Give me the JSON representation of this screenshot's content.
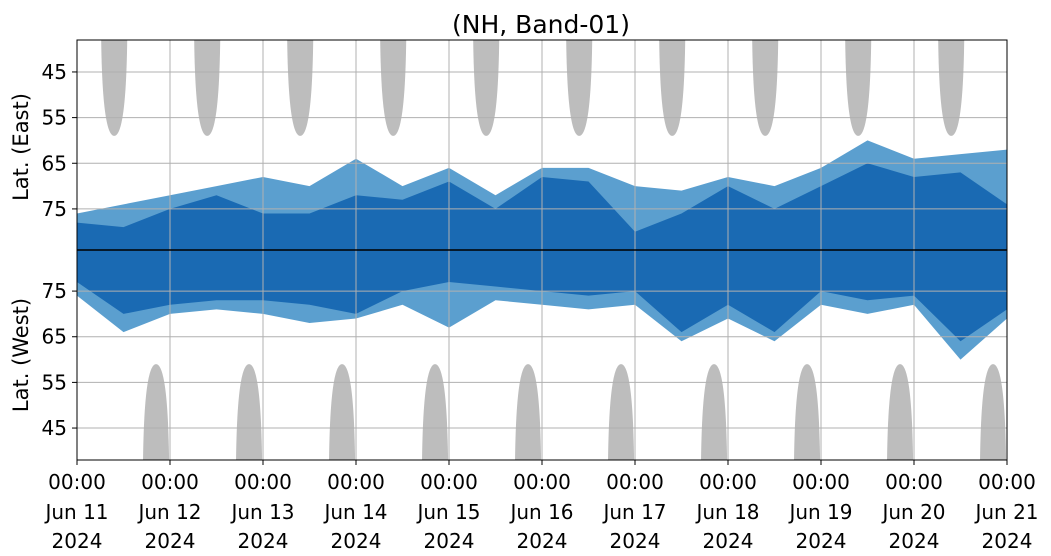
{
  "chart_data": {
    "type": "heatmap",
    "title": "(NH, Band-01)",
    "y_upper_label": "Lat. (East)",
    "y_lower_label": "Lat. (West)",
    "y_upper_ticks": [
      "45",
      "55",
      "65",
      "75"
    ],
    "y_lower_ticks": [
      "75",
      "65",
      "55",
      "45"
    ],
    "y_tick_latitudes_upper": [
      45,
      55,
      65,
      75
    ],
    "y_tick_latitudes_lower": [
      75,
      65,
      55,
      45
    ],
    "y_range_upper": [
      38,
      84
    ],
    "y_range_lower": [
      84,
      38
    ],
    "x_tick_labels": [
      {
        "time": "00:00",
        "date": "Jun 11",
        "year": "2024"
      },
      {
        "time": "00:00",
        "date": "Jun 12",
        "year": "2024"
      },
      {
        "time": "00:00",
        "date": "Jun 13",
        "year": "2024"
      },
      {
        "time": "00:00",
        "date": "Jun 14",
        "year": "2024"
      },
      {
        "time": "00:00",
        "date": "Jun 15",
        "year": "2024"
      },
      {
        "time": "00:00",
        "date": "Jun 16",
        "year": "2024"
      },
      {
        "time": "00:00",
        "date": "Jun 17",
        "year": "2024"
      },
      {
        "time": "00:00",
        "date": "Jun 18",
        "year": "2024"
      },
      {
        "time": "00:00",
        "date": "Jun 19",
        "year": "2024"
      },
      {
        "time": "00:00",
        "date": "Jun 20",
        "year": "2024"
      },
      {
        "time": "00:00",
        "date": "Jun 21",
        "year": "2024"
      }
    ],
    "x_range": [
      "2024-06-11 00:00",
      "2024-06-21 00:00"
    ],
    "grid": true,
    "colors": {
      "strong": "#1a6ab3",
      "weak": "#5b9fcf",
      "nodata": "#bdbdbd",
      "grid": "#b0b0b0",
      "divider": "#000000"
    },
    "nodata_caps_upper": [
      {
        "center_day": 0.4,
        "min_lat": 59
      },
      {
        "center_day": 1.4,
        "min_lat": 59
      },
      {
        "center_day": 2.4,
        "min_lat": 59
      },
      {
        "center_day": 3.4,
        "min_lat": 59
      },
      {
        "center_day": 4.4,
        "min_lat": 59
      },
      {
        "center_day": 5.4,
        "min_lat": 59
      },
      {
        "center_day": 6.4,
        "min_lat": 59
      },
      {
        "center_day": 7.4,
        "min_lat": 59
      },
      {
        "center_day": 8.4,
        "min_lat": 59
      },
      {
        "center_day": 9.4,
        "min_lat": 59
      }
    ],
    "nodata_caps_lower": [
      {
        "center_day": 0.85,
        "min_lat": 59
      },
      {
        "center_day": 1.85,
        "min_lat": 59
      },
      {
        "center_day": 2.85,
        "min_lat": 59
      },
      {
        "center_day": 3.85,
        "min_lat": 59
      },
      {
        "center_day": 4.85,
        "min_lat": 59
      },
      {
        "center_day": 5.85,
        "min_lat": 59
      },
      {
        "center_day": 6.85,
        "min_lat": 59
      },
      {
        "center_day": 7.85,
        "min_lat": 59
      },
      {
        "center_day": 8.85,
        "min_lat": 59
      },
      {
        "center_day": 9.85,
        "min_lat": 59
      }
    ],
    "activity_upper": [
      {
        "day": 0.0,
        "strong_to": 78,
        "weak_to": 76
      },
      {
        "day": 0.5,
        "strong_to": 79,
        "weak_to": 74
      },
      {
        "day": 1.0,
        "strong_to": 75,
        "weak_to": 72
      },
      {
        "day": 1.5,
        "strong_to": 72,
        "weak_to": 70
      },
      {
        "day": 2.0,
        "strong_to": 76,
        "weak_to": 68
      },
      {
        "day": 2.5,
        "strong_to": 76,
        "weak_to": 70
      },
      {
        "day": 3.0,
        "strong_to": 72,
        "weak_to": 64
      },
      {
        "day": 3.5,
        "strong_to": 73,
        "weak_to": 70
      },
      {
        "day": 4.0,
        "strong_to": 69,
        "weak_to": 66
      },
      {
        "day": 4.5,
        "strong_to": 75,
        "weak_to": 72
      },
      {
        "day": 5.0,
        "strong_to": 68,
        "weak_to": 66
      },
      {
        "day": 5.5,
        "strong_to": 69,
        "weak_to": 66
      },
      {
        "day": 6.0,
        "strong_to": 80,
        "weak_to": 70
      },
      {
        "day": 6.5,
        "strong_to": 76,
        "weak_to": 71
      },
      {
        "day": 7.0,
        "strong_to": 70,
        "weak_to": 68
      },
      {
        "day": 7.5,
        "strong_to": 75,
        "weak_to": 70
      },
      {
        "day": 8.0,
        "strong_to": 70,
        "weak_to": 66
      },
      {
        "day": 8.5,
        "strong_to": 65,
        "weak_to": 60
      },
      {
        "day": 9.0,
        "strong_to": 68,
        "weak_to": 64
      },
      {
        "day": 9.5,
        "strong_to": 67,
        "weak_to": 63
      },
      {
        "day": 10.0,
        "strong_to": 74,
        "weak_to": 62
      }
    ],
    "activity_lower": [
      {
        "day": 0.0,
        "strong_to": 77,
        "weak_to": 74
      },
      {
        "day": 0.5,
        "strong_to": 70,
        "weak_to": 66
      },
      {
        "day": 1.0,
        "strong_to": 72,
        "weak_to": 70
      },
      {
        "day": 1.5,
        "strong_to": 73,
        "weak_to": 71
      },
      {
        "day": 2.0,
        "strong_to": 73,
        "weak_to": 70
      },
      {
        "day": 2.5,
        "strong_to": 72,
        "weak_to": 68
      },
      {
        "day": 3.0,
        "strong_to": 70,
        "weak_to": 69
      },
      {
        "day": 3.5,
        "strong_to": 75,
        "weak_to": 72
      },
      {
        "day": 4.0,
        "strong_to": 77,
        "weak_to": 67
      },
      {
        "day": 4.5,
        "strong_to": 76,
        "weak_to": 73
      },
      {
        "day": 5.0,
        "strong_to": 75,
        "weak_to": 72
      },
      {
        "day": 5.5,
        "strong_to": 74,
        "weak_to": 71
      },
      {
        "day": 6.0,
        "strong_to": 75,
        "weak_to": 72
      },
      {
        "day": 6.5,
        "strong_to": 66,
        "weak_to": 64
      },
      {
        "day": 7.0,
        "strong_to": 72,
        "weak_to": 69
      },
      {
        "day": 7.5,
        "strong_to": 66,
        "weak_to": 64
      },
      {
        "day": 8.0,
        "strong_to": 75,
        "weak_to": 72
      },
      {
        "day": 8.5,
        "strong_to": 73,
        "weak_to": 70
      },
      {
        "day": 9.0,
        "strong_to": 74,
        "weak_to": 72
      },
      {
        "day": 9.5,
        "strong_to": 64,
        "weak_to": 60
      },
      {
        "day": 10.0,
        "strong_to": 71,
        "weak_to": 69
      }
    ]
  }
}
